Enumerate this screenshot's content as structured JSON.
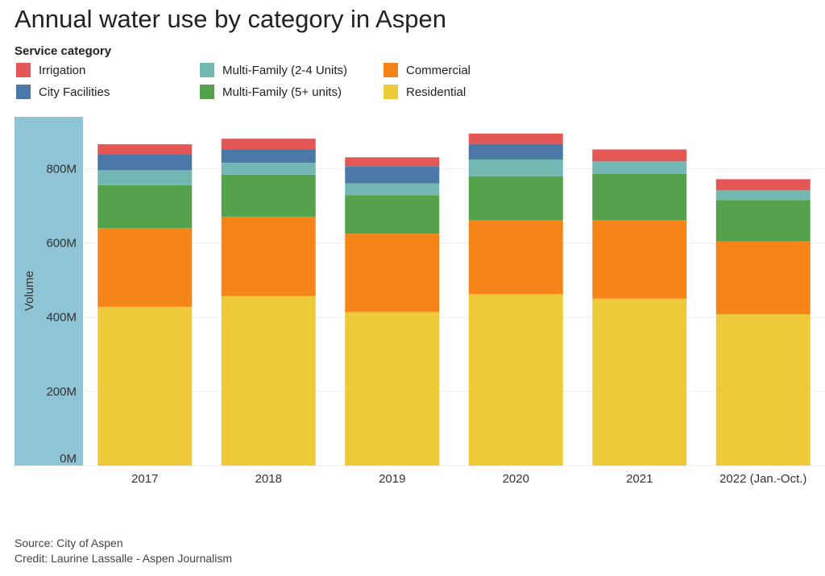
{
  "title": "Annual water use by category in Aspen",
  "legend": {
    "title": "Service category",
    "items": [
      {
        "label": "Irrigation",
        "color": "#e45756"
      },
      {
        "label": "City Facilities",
        "color": "#4c78a8"
      },
      {
        "label": "Multi-Family (2-4 Units)",
        "color": "#72b7b2"
      },
      {
        "label": "Multi-Family (5+ units)",
        "color": "#54a24b"
      },
      {
        "label": "Commercial",
        "color": "#f58518"
      },
      {
        "label": "Residential",
        "color": "#eeca3b"
      }
    ]
  },
  "source_text": "Source: City of Aspen",
  "credit_text": "Credit: Laurine Lassalle - Aspen Journalism",
  "chart_data": {
    "type": "bar",
    "stacked": true,
    "title": "Annual water use by category in Aspen",
    "ylabel": "Volume",
    "xlabel": "",
    "ylim": [
      0,
      940000000
    ],
    "y_ticks": [
      0,
      200000000,
      400000000,
      600000000,
      800000000
    ],
    "y_tick_labels": [
      "0M",
      "200M",
      "400M",
      "600M",
      "800M"
    ],
    "grid": true,
    "legend_position": "top-left",
    "categories": [
      "2017",
      "2018",
      "2019",
      "2020",
      "2021",
      "2022 (Jan.-Oct.)"
    ],
    "series": [
      {
        "name": "Residential",
        "color": "#eeca3b",
        "values": [
          428000000,
          457000000,
          414000000,
          462000000,
          450000000,
          408000000
        ]
      },
      {
        "name": "Commercial",
        "color": "#f58518",
        "values": [
          212000000,
          214000000,
          211000000,
          200000000,
          212000000,
          196000000
        ]
      },
      {
        "name": "Multi-Family (5+ units)",
        "color": "#54a24b",
        "values": [
          116000000,
          113000000,
          104000000,
          118000000,
          124000000,
          112000000
        ]
      },
      {
        "name": "Multi-Family (2-4 Units)",
        "color": "#72b7b2",
        "values": [
          40000000,
          32000000,
          32000000,
          45000000,
          34000000,
          26000000
        ]
      },
      {
        "name": "City Facilities",
        "color": "#4c78a8",
        "values": [
          42000000,
          36000000,
          46000000,
          42000000,
          0,
          0
        ]
      },
      {
        "name": "Irrigation",
        "color": "#e45756",
        "values": [
          28000000,
          29000000,
          24000000,
          28000000,
          32000000,
          30000000
        ]
      }
    ]
  }
}
